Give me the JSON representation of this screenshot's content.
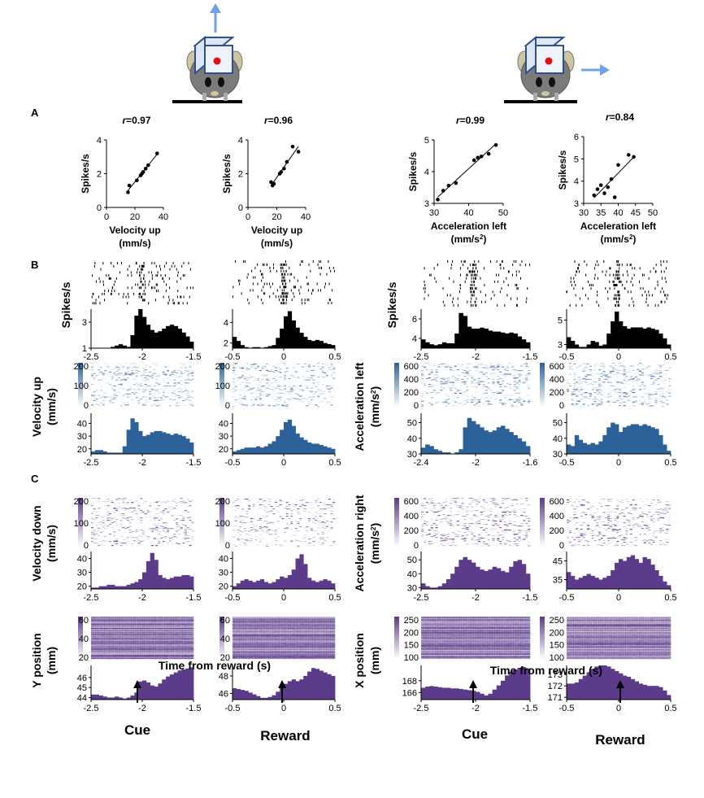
{
  "panel_labels": [
    "A",
    "B",
    "C"
  ],
  "bottom": {
    "xlabel": "Time from reward (s)",
    "arrows": [
      {
        "label": "Cue"
      },
      {
        "label": "Reward"
      },
      {
        "label": "Cue"
      },
      {
        "label": "Reward"
      }
    ]
  },
  "colors": {
    "mouse_body": "#7b7b7b",
    "box_frame": "#2f4f8f",
    "box_fill": "#dde6f6",
    "eye_red": "#e01010",
    "arrow": "#6fa0e8",
    "blue_series": "#2c6199",
    "purple_series": "#5c3b8a",
    "raster_black": "#000000"
  },
  "chart_data": [
    {
      "id": "A1",
      "type": "scatter",
      "title_r": "0.97",
      "xlabel": "Velocity up",
      "xlabel2": "(mm/s)",
      "ylabel": "Spikes/s",
      "xlim": [
        0,
        45
      ],
      "ylim": [
        0,
        4
      ],
      "xticks": [
        "0",
        "20",
        "40"
      ],
      "yticks": [
        "0",
        "2",
        "4"
      ],
      "x": [
        17,
        18,
        24,
        27,
        28,
        29,
        31,
        33,
        40
      ],
      "y": [
        0.9,
        1.3,
        1.6,
        1.9,
        2.0,
        2.1,
        2.3,
        2.5,
        3.2
      ]
    },
    {
      "id": "A2",
      "type": "scatter",
      "title_r": "0.96",
      "xlabel": "Velocity up",
      "xlabel2": "(mm/s)",
      "ylabel": "Spikes/s",
      "xlim": [
        0,
        40
      ],
      "ylim": [
        0,
        4
      ],
      "xticks": [
        "0",
        "20",
        "40"
      ],
      "yticks": [
        "0",
        "2",
        "4"
      ],
      "x": [
        16,
        17,
        18,
        22,
        23,
        25,
        27,
        31,
        35
      ],
      "y": [
        1.5,
        1.3,
        1.4,
        2.0,
        2.1,
        2.3,
        2.7,
        3.6,
        3.3
      ]
    },
    {
      "id": "A3",
      "type": "scatter",
      "title_r": "0.99",
      "xlabel": "Acceleration left",
      "xlabel2": "(mm/s",
      "xlabel_sup": "2",
      "xlabel_end": ")",
      "ylabel": "Spikes/s",
      "xlim": [
        31,
        50
      ],
      "ylim": [
        2.8,
        5.3
      ],
      "xticks": [
        "30",
        "40",
        "50"
      ],
      "yticks": [
        "3",
        "4",
        "5"
      ],
      "x": [
        32,
        33.5,
        35,
        37,
        42,
        43,
        44,
        46,
        48
      ],
      "y": [
        2.95,
        3.3,
        3.5,
        3.6,
        4.5,
        4.6,
        4.65,
        4.75,
        5.1
      ]
    },
    {
      "id": "A4",
      "type": "scatter",
      "title_r": "0.84",
      "xlabel": "Acceleration left",
      "xlabel2": "(mm/s",
      "xlabel_sup": "2",
      "xlabel_end": ")",
      "ylabel": "Spikes/s",
      "xlim": [
        30,
        50
      ],
      "ylim": [
        2.7,
        6
      ],
      "xticks": [
        "30",
        "35",
        "40",
        "45",
        "50"
      ],
      "yticks": [
        "3",
        "4",
        "5",
        "6"
      ],
      "x": [
        33,
        34,
        35,
        36,
        37,
        38,
        39,
        40,
        43,
        44.5
      ],
      "y": [
        3.1,
        3.4,
        3.6,
        3.2,
        3.5,
        3.9,
        3.0,
        4.6,
        5.1,
        5.0
      ]
    },
    {
      "id": "B-spikes-1",
      "type": "bar",
      "ylabel": "Spikes/s",
      "xlim": [
        -2.5,
        -1.5
      ],
      "ylim": [
        1,
        4
      ],
      "xticks": [
        "-2.5",
        "-2",
        "-1.5"
      ],
      "yticks": [
        "1",
        "3"
      ],
      "values": [
        1.0,
        1.0,
        1.0,
        1.0,
        1.0,
        1.1,
        1.2,
        1.3,
        1.2,
        1.1,
        2.0,
        3.5,
        4.0,
        3.4,
        2.8,
        2.4,
        2.2,
        2.3,
        2.5,
        2.7,
        2.8,
        2.7,
        2.5,
        2.2,
        1.9,
        1.5
      ]
    },
    {
      "id": "B-spikes-2",
      "type": "bar",
      "xlim": [
        -0.5,
        0.5
      ],
      "ylim": [
        1.5,
        5.3
      ],
      "xticks": [
        "-0.5",
        "0",
        "0.5"
      ],
      "yticks": [
        "2",
        "4"
      ],
      "values": [
        2.6,
        2.2,
        1.8,
        1.6,
        1.5,
        1.6,
        1.6,
        1.5,
        1.6,
        1.7,
        1.8,
        2.5,
        3.4,
        4.6,
        5.1,
        4.2,
        3.5,
        3.0,
        2.6,
        2.3,
        2.2,
        2.3,
        2.2,
        2.0,
        1.9,
        1.8
      ]
    },
    {
      "id": "B-spikes-3",
      "type": "bar",
      "ylabel": "Spikes/s",
      "xlim": [
        -2.5,
        -1.5
      ],
      "ylim": [
        3,
        7
      ],
      "xticks": [
        "-2.5",
        "-2",
        "-1.5"
      ],
      "yticks": [
        "4",
        "6"
      ],
      "values": [
        3.9,
        3.6,
        3.4,
        3.3,
        3.4,
        3.6,
        3.5,
        3.5,
        4.5,
        6.6,
        6.3,
        5.2,
        5.0,
        5.0,
        5.1,
        5.0,
        4.8,
        4.7,
        4.7,
        4.6,
        4.5,
        4.6,
        4.5,
        4.2,
        3.9,
        3.6
      ]
    },
    {
      "id": "B-spikes-4",
      "type": "bar",
      "xlim": [
        -0.5,
        0.5
      ],
      "ylim": [
        2.7,
        5.9
      ],
      "xticks": [
        "-0.5",
        "0",
        "0.5"
      ],
      "yticks": [
        "3",
        "5"
      ],
      "values": [
        3.6,
        3.3,
        3.0,
        2.8,
        2.8,
        3.0,
        3.3,
        3.2,
        2.9,
        3.0,
        3.9,
        4.9,
        5.7,
        4.9,
        4.5,
        4.3,
        4.4,
        4.4,
        4.4,
        4.3,
        4.4,
        4.3,
        4.2,
        3.9,
        3.5,
        3.0
      ]
    },
    {
      "id": "B-vel-hist",
      "type": "bar",
      "ylabel": "Velocity up",
      "ylabel2": "(mm/s)",
      "xlim": [
        -2.5,
        -1.5
      ],
      "ylim": [
        16,
        48
      ],
      "xticks": [
        "-2.5",
        "-2",
        "-1.5"
      ],
      "yticks": [
        "20",
        "30",
        "40"
      ],
      "heat_yticks": [
        "0",
        "100",
        "200"
      ],
      "values": [
        18,
        19,
        19,
        18,
        17,
        17,
        17,
        17,
        22,
        35,
        44,
        41,
        34,
        30,
        31,
        33,
        34,
        34,
        33,
        32,
        31,
        32,
        31,
        30,
        28,
        25
      ]
    },
    {
      "id": "B-vel-hist-2",
      "type": "bar",
      "xlim": [
        -0.5,
        0.5
      ],
      "ylim": [
        16,
        48
      ],
      "xticks": [
        "-0.5",
        "0",
        "0.5"
      ],
      "yticks": [
        "20",
        "30",
        "40"
      ],
      "heat_yticks": [
        "0",
        "100",
        "200"
      ],
      "values": [
        18,
        19,
        20,
        21,
        21,
        21,
        22,
        21,
        22,
        24,
        26,
        30,
        35,
        41,
        43,
        38,
        32,
        29,
        27,
        25,
        24,
        24,
        23,
        22,
        21,
        20
      ]
    },
    {
      "id": "B-acc-hist",
      "type": "bar",
      "ylabel": "Acceleration left",
      "ylabel2": "(mm/s",
      "ylabel_sup": "2",
      "ylabel_end": ")",
      "xlim": [
        -2.5,
        -1.5
      ],
      "ylim": [
        30,
        56
      ],
      "xticks": [
        "-2.4",
        "-2",
        "-1.6"
      ],
      "yticks": [
        "30",
        "40",
        "50"
      ],
      "heat_yticks": [
        "0",
        "200",
        "400",
        "600"
      ],
      "values": [
        34,
        36,
        35,
        33,
        32,
        31,
        31,
        30,
        31,
        33,
        47,
        53,
        51,
        49,
        47,
        45,
        44,
        45,
        47,
        48,
        46,
        44,
        42,
        40,
        38,
        35
      ]
    },
    {
      "id": "B-acc-hist-2",
      "type": "bar",
      "xlim": [
        -0.5,
        0.5
      ],
      "ylim": [
        30,
        56
      ],
      "xticks": [
        "-0.5",
        "0",
        "0.5"
      ],
      "yticks": [
        "30",
        "40",
        "50"
      ],
      "heat_yticks": [
        "0",
        "200",
        "400",
        "600"
      ],
      "values": [
        36,
        35,
        42,
        39,
        37,
        36,
        37,
        36,
        38,
        42,
        47,
        50,
        49,
        44,
        47,
        48,
        49,
        49,
        48,
        49,
        48,
        47,
        46,
        42,
        36,
        32
      ]
    },
    {
      "id": "C-veldown-hist",
      "type": "bar",
      "ylabel": "Velocity down",
      "ylabel2": "(mm/s)",
      "xlim": [
        -2.5,
        -1.5
      ],
      "ylim": [
        18,
        45
      ],
      "xticks": [
        "-2.5",
        "-2",
        "-1.5"
      ],
      "yticks": [
        "20",
        "30",
        "40"
      ],
      "heat_yticks": [
        "0",
        "100",
        "200"
      ],
      "values": [
        19,
        19,
        20,
        20,
        21,
        21,
        20,
        20,
        20,
        21,
        22,
        23,
        25,
        30,
        38,
        44,
        39,
        28,
        26,
        25,
        26,
        27,
        27,
        28,
        28,
        27
      ]
    },
    {
      "id": "C-veldown-hist-2",
      "type": "bar",
      "xlim": [
        -0.5,
        0.5
      ],
      "ylim": [
        18,
        45
      ],
      "xticks": [
        "-0.5",
        "0",
        "0.5"
      ],
      "yticks": [
        "20",
        "30",
        "40"
      ],
      "heat_yticks": [
        "0",
        "100",
        "200"
      ],
      "values": [
        20,
        22,
        24,
        25,
        24,
        23,
        24,
        25,
        23,
        22,
        23,
        25,
        27,
        26,
        28,
        32,
        40,
        43,
        36,
        26,
        24,
        23,
        24,
        25,
        24,
        22
      ]
    },
    {
      "id": "C-accright-hist",
      "type": "bar",
      "ylabel": "Acceleration right",
      "ylabel2": "(mm/s",
      "ylabel_sup": "2",
      "ylabel_end": ")",
      "xlim": [
        -2.5,
        -1.5
      ],
      "ylim": [
        29,
        56
      ],
      "xticks": [
        "-2.5",
        "-2",
        "-1.5"
      ],
      "yticks": [
        "30",
        "40",
        "50"
      ],
      "heat_yticks": [
        "0",
        "200",
        "400",
        "600"
      ],
      "values": [
        33,
        31,
        30,
        30,
        31,
        33,
        36,
        40,
        45,
        50,
        52,
        50,
        48,
        45,
        43,
        42,
        43,
        45,
        44,
        42,
        41,
        45,
        49,
        50,
        47,
        40
      ]
    },
    {
      "id": "C-accright-hist-2",
      "type": "bar",
      "xlim": [
        -0.5,
        0.5
      ],
      "ylim": [
        30,
        50
      ],
      "xticks": [
        "-0.5",
        "0",
        "0.5"
      ],
      "yticks": [
        "35",
        "45"
      ],
      "heat_yticks": [
        "0",
        "200",
        "400",
        "600"
      ],
      "values": [
        39,
        37,
        35,
        36,
        37,
        38,
        37,
        36,
        35,
        36,
        37,
        40,
        44,
        46,
        45,
        47,
        48,
        46,
        44,
        47,
        46,
        43,
        40,
        37,
        34,
        32
      ]
    },
    {
      "id": "C-ypos-hist",
      "type": "bar",
      "ylabel": "Y position",
      "ylabel2": "(mm)",
      "xlim": [
        -2.5,
        -1.5
      ],
      "ylim": [
        43.8,
        47.2
      ],
      "xticks": [
        "-2.5",
        "-2",
        "-1.5"
      ],
      "yticks": [
        "44",
        "45",
        "46"
      ],
      "heat_yticks": [
        "20",
        "40",
        "60"
      ],
      "values": [
        44.3,
        44.3,
        44.2,
        44.1,
        44.0,
        44.0,
        44.1,
        44.0,
        43.9,
        44.0,
        44.2,
        44.5,
        45.6,
        45.7,
        45.5,
        45.2,
        45.1,
        45.4,
        45.8,
        46.1,
        46.3,
        46.5,
        46.7,
        46.8,
        46.9,
        47.0
      ]
    },
    {
      "id": "C-ypos-hist-2",
      "type": "bar",
      "xlim": [
        -0.5,
        0.5
      ],
      "ylim": [
        45.3,
        49.2
      ],
      "xticks": [
        "-0.5",
        "0",
        "0.5"
      ],
      "yticks": [
        "46",
        "48"
      ],
      "heat_yticks": [
        "20",
        "40",
        "60"
      ],
      "values": [
        46.6,
        46.5,
        46.4,
        46.3,
        46.1,
        45.9,
        45.7,
        45.5,
        45.5,
        45.6,
        45.8,
        46.2,
        46.7,
        47.1,
        47.4,
        47.6,
        47.4,
        47.6,
        48.0,
        48.5,
        48.9,
        48.8,
        48.6,
        48.4,
        48.2,
        48.0
      ]
    },
    {
      "id": "C-xpos-hist",
      "type": "bar",
      "ylabel": "X position",
      "ylabel2": "(mm)",
      "xlim": [
        -2.5,
        -1.5
      ],
      "ylim": [
        164.8,
        170.6
      ],
      "xticks": [
        "-2.5",
        "-2",
        "-1.5"
      ],
      "yticks": [
        "166",
        "168"
      ],
      "heat_yticks": [
        "100",
        "150",
        "200",
        "250"
      ],
      "values": [
        166.8,
        167.0,
        167.1,
        167.0,
        166.9,
        166.8,
        166.8,
        166.7,
        166.7,
        166.6,
        166.5,
        166.4,
        166.3,
        166.1,
        165.8,
        165.5,
        165.8,
        166.5,
        167.2,
        168.0,
        168.9,
        169.5,
        169.9,
        170.2,
        170.3,
        170.1
      ]
    },
    {
      "id": "C-xpos-hist-2",
      "type": "bar",
      "xlim": [
        -0.5,
        0.5
      ],
      "ylim": [
        170.8,
        173.8
      ],
      "xticks": [
        "-0.5",
        "0",
        "0.5"
      ],
      "yticks": [
        "171",
        "172",
        "173"
      ],
      "heat_yticks": [
        "100",
        "150",
        "200",
        "250"
      ],
      "values": [
        172.2,
        172.2,
        172.3,
        172.6,
        172.9,
        173.2,
        173.5,
        173.7,
        173.8,
        173.8,
        173.7,
        173.5,
        173.3,
        173.1,
        172.9,
        172.8,
        172.6,
        172.4,
        172.2,
        172.1,
        172.0,
        172.0,
        172.0,
        171.9,
        171.6,
        171.2
      ]
    }
  ]
}
